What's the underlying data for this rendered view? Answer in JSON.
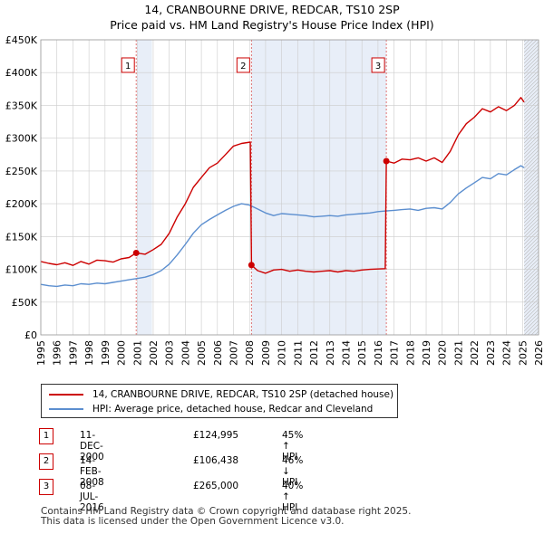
{
  "title_line1": "14, CRANBOURNE DRIVE, REDCAR, TS10 2SP",
  "title_line2": "Price paid vs. HM Land Registry's House Price Index (HPI)",
  "colors": {
    "red": "#cc0000",
    "blue": "#5b8ecf",
    "shade": "#e8eef8",
    "grid": "#cccccc"
  },
  "legend": {
    "red_label": "14, CRANBOURNE DRIVE, REDCAR, TS10 2SP (detached house)",
    "blue_label": "HPI: Average price, detached house, Redcar and Cleveland"
  },
  "events": [
    {
      "id": "1",
      "date": "11-DEC-2000",
      "price": "£124,995",
      "pct": "45% ↑ HPI"
    },
    {
      "id": "2",
      "date": "14-FEB-2008",
      "price": "£106,438",
      "pct": "46% ↓ HPI"
    },
    {
      "id": "3",
      "date": "08-JUL-2016",
      "price": "£265,000",
      "pct": "40% ↑ HPI"
    }
  ],
  "footer": {
    "line1": "Contains HM Land Registry data © Crown copyright and database right 2025.",
    "line2": "This data is licensed under the Open Government Licence v3.0."
  },
  "chart_data": {
    "type": "line",
    "title": "14, CRANBOURNE DRIVE, REDCAR, TS10 2SP",
    "subtitle": "Price paid vs. HM Land Registry's House Price Index (HPI)",
    "xlim": [
      1995,
      2026
    ],
    "ylim": [
      0,
      450000
    ],
    "x_ticks": [
      1995,
      1996,
      1997,
      1998,
      1999,
      2000,
      2001,
      2002,
      2003,
      2004,
      2005,
      2006,
      2007,
      2008,
      2009,
      2010,
      2011,
      2012,
      2013,
      2014,
      2015,
      2016,
      2017,
      2018,
      2019,
      2020,
      2021,
      2022,
      2023,
      2024,
      2025,
      2026
    ],
    "y_ticks": [
      {
        "value": 0,
        "label": "£0"
      },
      {
        "value": 50000,
        "label": "£50K"
      },
      {
        "value": 100000,
        "label": "£100K"
      },
      {
        "value": 150000,
        "label": "£150K"
      },
      {
        "value": 200000,
        "label": "£200K"
      },
      {
        "value": 250000,
        "label": "£250K"
      },
      {
        "value": 300000,
        "label": "£300K"
      },
      {
        "value": 350000,
        "label": "£350K"
      },
      {
        "value": 400000,
        "label": "£400K"
      },
      {
        "value": 450000,
        "label": "£450K"
      }
    ],
    "shaded_ranges": [
      [
        2001,
        2001.92
      ],
      [
        2008.12,
        2016.52
      ],
      [
        2025.1,
        2026
      ]
    ],
    "sales": [
      {
        "id": "1",
        "x": 2000.94,
        "y": 124995
      },
      {
        "id": "2",
        "x": 2008.12,
        "y": 106438
      },
      {
        "id": "3",
        "x": 2016.52,
        "y": 265000
      }
    ],
    "series": [
      {
        "name": "14, CRANBOURNE DRIVE, REDCAR, TS10 2SP (detached house)",
        "color": "#cc0000",
        "points": [
          [
            1995,
            112000
          ],
          [
            1995.5,
            109000
          ],
          [
            1996,
            107000
          ],
          [
            1996.5,
            110000
          ],
          [
            1997,
            106000
          ],
          [
            1997.5,
            112000
          ],
          [
            1998,
            108000
          ],
          [
            1998.5,
            114000
          ],
          [
            1999,
            113000
          ],
          [
            1999.5,
            111000
          ],
          [
            2000,
            116000
          ],
          [
            2000.5,
            118000
          ],
          [
            2000.94,
            124995
          ],
          [
            2001.5,
            123000
          ],
          [
            2002,
            130000
          ],
          [
            2002.5,
            138000
          ],
          [
            2003,
            155000
          ],
          [
            2003.5,
            180000
          ],
          [
            2004,
            200000
          ],
          [
            2004.5,
            225000
          ],
          [
            2005,
            240000
          ],
          [
            2005.5,
            255000
          ],
          [
            2006,
            262000
          ],
          [
            2006.5,
            275000
          ],
          [
            2007,
            288000
          ],
          [
            2007.5,
            292000
          ],
          [
            2008.05,
            294000
          ],
          [
            2008.12,
            106438
          ],
          [
            2008.5,
            98000
          ],
          [
            2009,
            94000
          ],
          [
            2009.5,
            99000
          ],
          [
            2010,
            100000
          ],
          [
            2010.5,
            97000
          ],
          [
            2011,
            99000
          ],
          [
            2011.5,
            97000
          ],
          [
            2012,
            96000
          ],
          [
            2012.5,
            97000
          ],
          [
            2013,
            98000
          ],
          [
            2013.5,
            96000
          ],
          [
            2014,
            98000
          ],
          [
            2014.5,
            97000
          ],
          [
            2015,
            99000
          ],
          [
            2015.5,
            100000
          ],
          [
            2016.45,
            101000
          ],
          [
            2016.52,
            265000
          ],
          [
            2017,
            262000
          ],
          [
            2017.5,
            268000
          ],
          [
            2018,
            267000
          ],
          [
            2018.5,
            270000
          ],
          [
            2019,
            265000
          ],
          [
            2019.5,
            270000
          ],
          [
            2020,
            263000
          ],
          [
            2020.5,
            280000
          ],
          [
            2021,
            305000
          ],
          [
            2021.5,
            322000
          ],
          [
            2022,
            332000
          ],
          [
            2022.5,
            345000
          ],
          [
            2023,
            340000
          ],
          [
            2023.5,
            348000
          ],
          [
            2024,
            342000
          ],
          [
            2024.5,
            350000
          ],
          [
            2024.9,
            362000
          ],
          [
            2025.1,
            355000
          ]
        ]
      },
      {
        "name": "HPI: Average price, detached house, Redcar and Cleveland",
        "color": "#5b8ecf",
        "points": [
          [
            1995,
            77000
          ],
          [
            1995.5,
            75000
          ],
          [
            1996,
            74000
          ],
          [
            1996.5,
            76000
          ],
          [
            1997,
            75000
          ],
          [
            1997.5,
            78000
          ],
          [
            1998,
            77000
          ],
          [
            1998.5,
            79000
          ],
          [
            1999,
            78000
          ],
          [
            1999.5,
            80000
          ],
          [
            2000,
            82000
          ],
          [
            2000.5,
            84000
          ],
          [
            2001,
            86000
          ],
          [
            2001.5,
            88000
          ],
          [
            2002,
            92000
          ],
          [
            2002.5,
            98000
          ],
          [
            2003,
            108000
          ],
          [
            2003.5,
            122000
          ],
          [
            2004,
            138000
          ],
          [
            2004.5,
            155000
          ],
          [
            2005,
            168000
          ],
          [
            2005.5,
            176000
          ],
          [
            2006,
            183000
          ],
          [
            2006.5,
            190000
          ],
          [
            2007,
            196000
          ],
          [
            2007.5,
            200000
          ],
          [
            2008,
            198000
          ],
          [
            2008.5,
            192000
          ],
          [
            2009,
            186000
          ],
          [
            2009.5,
            182000
          ],
          [
            2010,
            185000
          ],
          [
            2010.5,
            184000
          ],
          [
            2011,
            183000
          ],
          [
            2011.5,
            182000
          ],
          [
            2012,
            180000
          ],
          [
            2012.5,
            181000
          ],
          [
            2013,
            182000
          ],
          [
            2013.5,
            181000
          ],
          [
            2014,
            183000
          ],
          [
            2014.5,
            184000
          ],
          [
            2015,
            185000
          ],
          [
            2015.5,
            186000
          ],
          [
            2016,
            188000
          ],
          [
            2016.5,
            189000
          ],
          [
            2017,
            190000
          ],
          [
            2017.5,
            191000
          ],
          [
            2018,
            192000
          ],
          [
            2018.5,
            190000
          ],
          [
            2019,
            193000
          ],
          [
            2019.5,
            194000
          ],
          [
            2020,
            192000
          ],
          [
            2020.5,
            202000
          ],
          [
            2021,
            215000
          ],
          [
            2021.5,
            224000
          ],
          [
            2022,
            232000
          ],
          [
            2022.5,
            240000
          ],
          [
            2023,
            238000
          ],
          [
            2023.5,
            246000
          ],
          [
            2024,
            244000
          ],
          [
            2024.5,
            252000
          ],
          [
            2024.9,
            258000
          ],
          [
            2025.1,
            255000
          ]
        ]
      }
    ]
  }
}
